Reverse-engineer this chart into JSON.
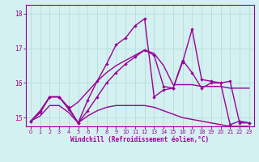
{
  "xlabel": "Windchill (Refroidissement éolien,°C)",
  "background_color": "#d4f0f0",
  "line_color": "#990099",
  "grid_color": "#b8e0e0",
  "xlim": [
    -0.5,
    23.5
  ],
  "ylim": [
    14.75,
    18.25
  ],
  "yticks": [
    15,
    16,
    17,
    18
  ],
  "xticks": [
    0,
    1,
    2,
    3,
    4,
    5,
    6,
    7,
    8,
    9,
    10,
    11,
    12,
    13,
    14,
    15,
    16,
    17,
    18,
    19,
    20,
    21,
    22,
    23
  ],
  "series": {
    "line1_marked": [
      14.9,
      15.2,
      15.6,
      15.6,
      15.3,
      14.85,
      15.5,
      16.05,
      16.55,
      17.1,
      17.3,
      17.65,
      17.85,
      15.6,
      15.8,
      15.85,
      16.6,
      17.55,
      16.1,
      16.05,
      16.0,
      14.8,
      14.9,
      14.85
    ],
    "line2_smooth": [
      14.9,
      15.15,
      15.6,
      15.6,
      15.25,
      15.45,
      15.75,
      16.05,
      16.3,
      16.5,
      16.65,
      16.8,
      16.95,
      16.85,
      16.5,
      15.95,
      15.95,
      15.95,
      15.9,
      15.9,
      15.9,
      15.85,
      15.85,
      15.85
    ],
    "line3_bottom": [
      14.9,
      15.05,
      15.35,
      15.35,
      15.15,
      14.85,
      15.05,
      15.2,
      15.3,
      15.35,
      15.35,
      15.35,
      15.35,
      15.3,
      15.2,
      15.1,
      15.0,
      14.95,
      14.9,
      14.85,
      14.8,
      14.75,
      14.75,
      14.75
    ],
    "line4_marked": [
      14.9,
      15.15,
      15.6,
      15.6,
      15.25,
      14.85,
      15.2,
      15.6,
      16.0,
      16.3,
      16.55,
      16.75,
      16.95,
      16.8,
      15.9,
      15.85,
      16.65,
      16.3,
      15.85,
      16.0,
      16.0,
      16.05,
      14.85,
      14.85
    ]
  }
}
